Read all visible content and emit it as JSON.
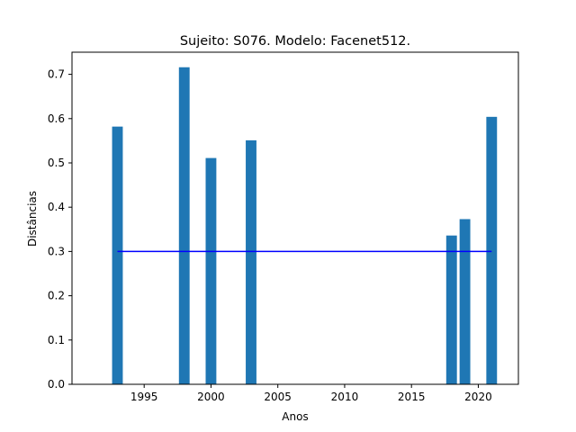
{
  "chart_data": {
    "type": "bar",
    "title": "Sujeito: S076. Modelo: Facenet512.",
    "xlabel": "Anos",
    "ylabel": "Distâncias",
    "x": [
      1993,
      1998,
      2000,
      2003,
      2018,
      2019,
      2021
    ],
    "values": [
      0.582,
      0.716,
      0.511,
      0.551,
      0.336,
      0.373,
      0.604
    ],
    "bar_width_years": 0.8,
    "xlim": [
      1989.6,
      2023.0
    ],
    "ylim": [
      0,
      0.75
    ],
    "xticks": [
      1995,
      2000,
      2005,
      2010,
      2015,
      2020
    ],
    "yticks": [
      0.0,
      0.1,
      0.2,
      0.3,
      0.4,
      0.5,
      0.6,
      0.7
    ],
    "threshold": {
      "value": 0.3,
      "x_start": 1993,
      "x_end": 2021,
      "color": "#0000ff"
    },
    "bar_color": "#1f77b4",
    "grid": false,
    "legend": "none"
  }
}
